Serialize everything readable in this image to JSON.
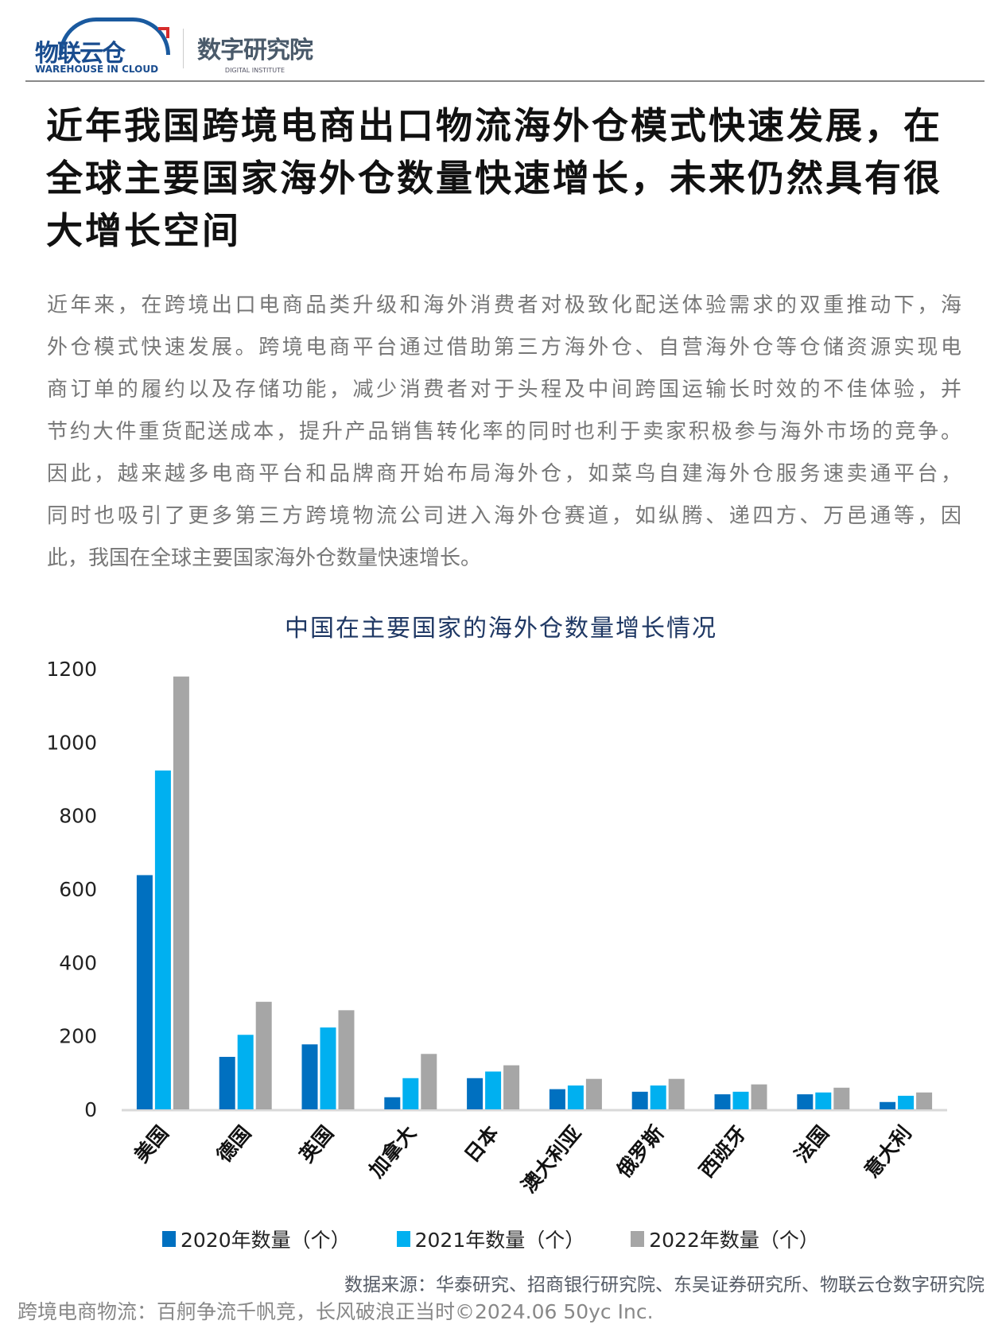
{
  "header": {
    "logo_cn": "物联云仓",
    "logo_en": "WAREHOUSE IN CLOUD",
    "institute_cn": "数字研究院",
    "institute_en": "DIGITAL INSTITUTE"
  },
  "title_lines": [
    "近年我国跨境电商出口物流海外仓模式快速发展，在",
    "全球主要国家海外仓数量快速增长，未来仍然具有很",
    "大增长空间"
  ],
  "paragraph_lines": [
    "近年来，在跨境出口电商品类升级和海外消费者对极致化配送体验需求的双重推动下，海",
    "外仓模式快速发展。跨境电商平台通过借助第三方海外仓、自营海外仓等仓储资源实现电",
    "商订单的履约以及存储功能，减少消费者对于头程及中间跨国运输长时效的不佳体验，并",
    "节约大件重货配送成本，提升产品销售转化率的同时也利于卖家积极参与海外市场的竞争。",
    "因此，越来越多电商平台和品牌商开始布局海外仓，如菜鸟自建海外仓服务速卖通平台，",
    "同时也吸引了更多第三方跨境物流公司进入海外仓赛道，如纵腾、递四方、万邑通等，因",
    "此，我国在全球主要国家海外仓数量快速增长。"
  ],
  "chart_data": {
    "type": "bar",
    "title": "中国在主要国家的海外仓数量增长情况",
    "categories": [
      "美国",
      "德国",
      "英国",
      "加拿大",
      "日本",
      "澳大利亚",
      "俄罗斯",
      "西班牙",
      "法国",
      "意大利"
    ],
    "series": [
      {
        "name": "2020年数量（个）",
        "color": "#0070c0",
        "values": [
          638,
          143,
          177,
          33,
          85,
          55,
          48,
          41,
          41,
          20
        ]
      },
      {
        "name": "2021年数量（个）",
        "color": "#00b0f0",
        "values": [
          923,
          203,
          223,
          85,
          103,
          65,
          65,
          48,
          46,
          37
        ]
      },
      {
        "name": "2022年数量（个）",
        "color": "#a6a6a6",
        "values": [
          1179,
          293,
          270,
          151,
          120,
          83,
          83,
          68,
          59,
          46
        ]
      }
    ],
    "yticks": [
      "0",
      "200",
      "400",
      "600",
      "800",
      "1000",
      "1200"
    ],
    "ylim": [
      0,
      1200
    ],
    "grid": false,
    "legend": "bottom",
    "title_color": "#1f3864"
  },
  "source": "数据来源：华泰研究、招商银行研究院、东吴证券研究所、物联云仓数字研究院",
  "footer": "跨境电商物流：百舸争流千帆竞，长风破浪正当时©2024.06 50yc Inc."
}
